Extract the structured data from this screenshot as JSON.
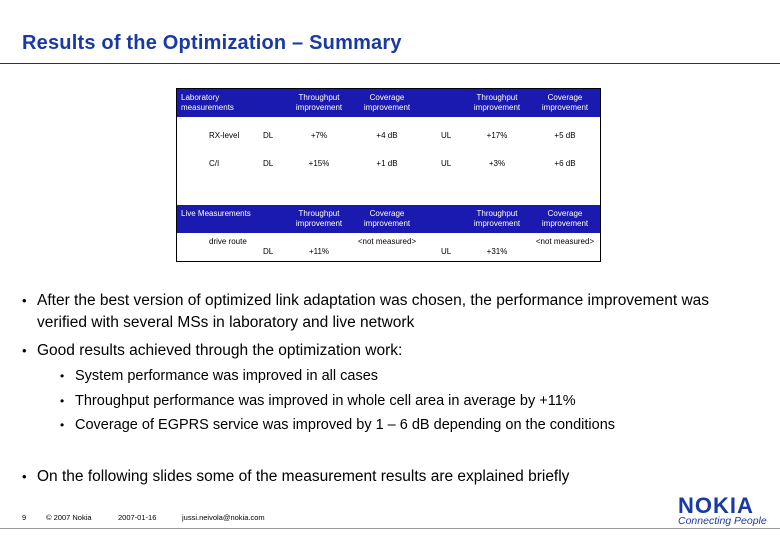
{
  "title": "Results of the Optimization – Summary",
  "table": {
    "lab_header": "Laboratory measurements",
    "live_header": "Live Measurements",
    "col_throughput": "Throughput improvement",
    "col_coverage": "Coverage improvement",
    "col_throughput_live": "Throughput improvement",
    "col_coverage_live": "Coverage improvement",
    "lab_rows": [
      {
        "metric": "RX-level",
        "dl": "DL",
        "dl_tp": "+7%",
        "dl_cov": "+4 dB",
        "ul": "UL",
        "ul_tp": "+17%",
        "ul_cov": "+5 dB"
      },
      {
        "metric": "C/I",
        "dl": "DL",
        "dl_tp": "+15%",
        "dl_cov": "+1 dB",
        "ul": "UL",
        "ul_tp": "+3%",
        "ul_cov": "+6 dB"
      }
    ],
    "live_row": {
      "metric": "drive route",
      "dl": "DL",
      "dl_tp": "+11%",
      "dl_cov": "<not measured>",
      "ul": "UL",
      "ul_tp": "+31%",
      "ul_cov": "<not measured>"
    }
  },
  "bullets": {
    "b1": "After the best version of optimized link adaptation was chosen, the performance improvement was verified with several MSs in laboratory and live network",
    "b2": "Good results achieved through the optimization work:",
    "sub": [
      "System performance was improved in all cases",
      "Throughput performance was improved in whole cell area in average by +11%",
      "Coverage of EGPRS service was improved by 1 – 6 dB depending on the conditions"
    ],
    "b3": "On the following slides some of the measurement results are explained briefly"
  },
  "footer": {
    "page": "9",
    "copyright": "© 2007 Nokia",
    "date": "2007-01-16",
    "email": "jussi.neivola@nokia.com"
  },
  "logo": {
    "brand": "NOKIA",
    "tagline": "Connecting People",
    "color": "#1a3aa3"
  }
}
